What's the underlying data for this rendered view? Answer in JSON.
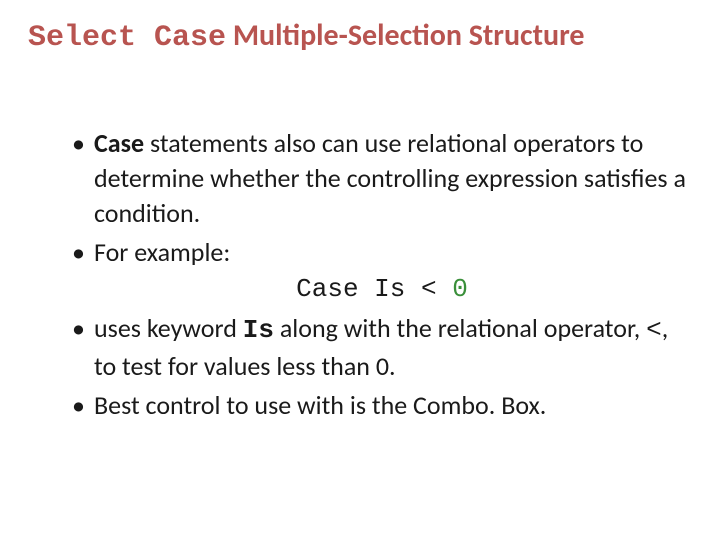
{
  "title": {
    "part1": "Select Case",
    "part2": " Multiple-Selection Structure",
    "accent_color": "#b85450"
  },
  "bullets": {
    "b1_pre": "Case",
    "b1_post": " statements also can use relational operators to determine whether the controlling expression satisfies a condition.",
    "b2": "For example:",
    "code_prefix": "Case Is < ",
    "code_zero": "0",
    "b3_pre": "uses keyword ",
    "b3_kw": "Is",
    "b3_mid": " along with the relational operator, ",
    "b3_op": "<",
    "b3_post": ", to test for values less than 0.",
    "b4": "Best control to use with is the Combo. Box."
  },
  "styling": {
    "background_color": "#ffffff",
    "text_color": "#1a1a1a",
    "zero_color": "#3a8f3a",
    "body_fontsize": 26,
    "title_fontsize": 30
  }
}
